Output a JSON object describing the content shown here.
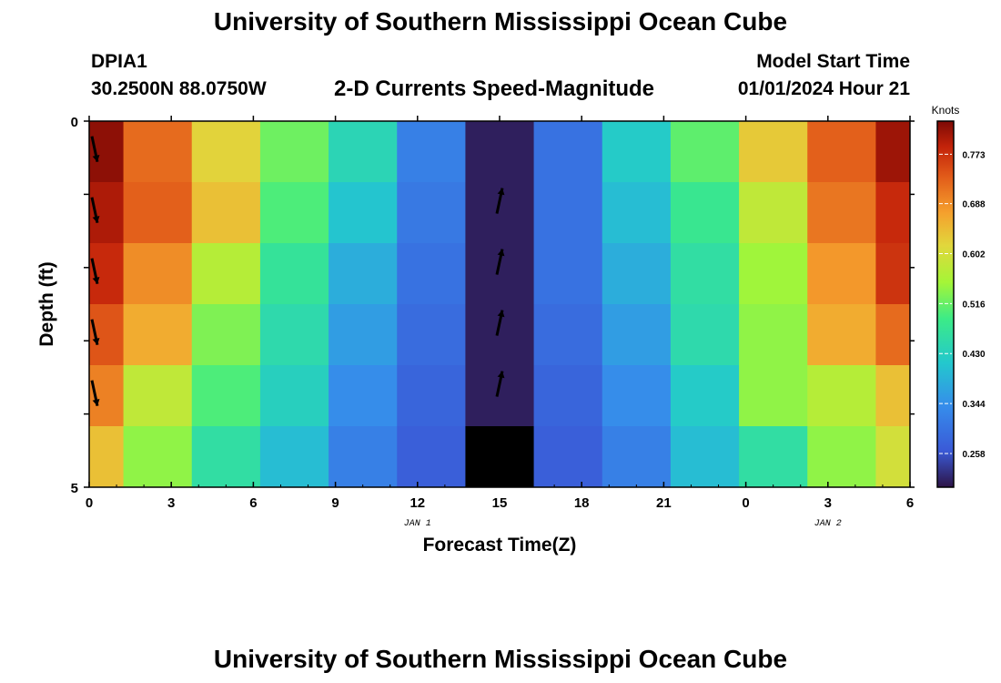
{
  "header": {
    "title": "University of Southern Mississippi Ocean Cube",
    "station": "DPIA1",
    "coords": "30.2500N  88.0750W",
    "subtitle": "2-D Currents Speed-Magnitude",
    "model_start_label": "Model Start Time",
    "model_start_value": "01/01/2024 Hour 21"
  },
  "footer": {
    "title": "University of Southern Mississippi Ocean Cube"
  },
  "chart_data": {
    "type": "heatmap",
    "title": "2-D Currents Speed-Magnitude",
    "xlabel": "Forecast Time(Z)",
    "ylabel": "Depth (ft)",
    "x_tick_labels": [
      "0",
      "3",
      "6",
      "9",
      "12",
      "15",
      "18",
      "21",
      "0",
      "3",
      "6"
    ],
    "date_labels": [
      {
        "text": "JAN 1",
        "at_tick": 4
      },
      {
        "text": "JAN 2",
        "at_tick": 9
      }
    ],
    "y_tick_labels": [
      "0",
      "5"
    ],
    "ylim": [
      0,
      5
    ],
    "hours_per_column": 3,
    "depth_rows": 5,
    "colorbar": {
      "title": "Knots",
      "ticks": [
        "0.773",
        "0.688",
        "0.602",
        "0.516",
        "0.430",
        "0.344",
        "0.258"
      ],
      "min": 0.2,
      "max": 0.83
    },
    "values_knots": [
      [
        0.82,
        0.72,
        0.62,
        0.52,
        0.44,
        0.32,
        0.21,
        0.3,
        0.42,
        0.51,
        0.63,
        0.73,
        0.81
      ],
      [
        0.8,
        0.73,
        0.64,
        0.5,
        0.41,
        0.31,
        0.21,
        0.3,
        0.4,
        0.48,
        0.58,
        0.71,
        0.78
      ],
      [
        0.78,
        0.69,
        0.57,
        0.47,
        0.38,
        0.3,
        0.21,
        0.3,
        0.38,
        0.46,
        0.55,
        0.68,
        0.77
      ],
      [
        0.74,
        0.66,
        0.53,
        0.45,
        0.36,
        0.29,
        0.21,
        0.29,
        0.36,
        0.45,
        0.54,
        0.66,
        0.72
      ],
      [
        0.7,
        0.58,
        0.5,
        0.43,
        0.34,
        0.28,
        0.21,
        0.28,
        0.34,
        0.42,
        0.54,
        0.57,
        0.64
      ],
      [
        0.64,
        0.54,
        0.46,
        0.4,
        0.32,
        0.27,
        0.0,
        0.27,
        0.32,
        0.4,
        0.46,
        0.54,
        0.6
      ]
    ],
    "color_overrides": [
      {
        "row": 5,
        "col": 6,
        "color": "#000000"
      }
    ],
    "vector_arrows": [
      {
        "col": 0,
        "row": 0.1,
        "dir": "down"
      },
      {
        "col": 0,
        "row": 1.1,
        "dir": "down"
      },
      {
        "col": 0,
        "row": 2.1,
        "dir": "down"
      },
      {
        "col": 0,
        "row": 3.1,
        "dir": "down"
      },
      {
        "col": 0,
        "row": 4.1,
        "dir": "down"
      },
      {
        "col": 6,
        "row": 0.8,
        "dir": "up"
      },
      {
        "col": 6,
        "row": 1.8,
        "dir": "up"
      },
      {
        "col": 6,
        "row": 2.8,
        "dir": "up"
      },
      {
        "col": 6,
        "row": 3.8,
        "dir": "up"
      }
    ]
  }
}
